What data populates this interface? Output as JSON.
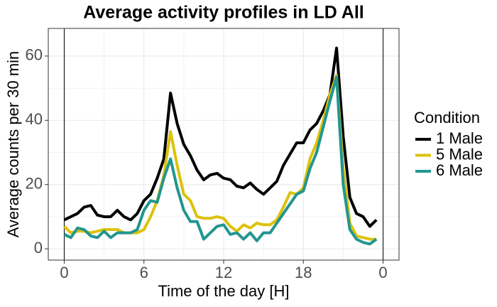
{
  "chart_data": {
    "type": "line",
    "title": "Average activity profiles in LD All",
    "x_label": "Time of the day [H]",
    "y_label": "Average counts per 30 min",
    "legend_title": "Condition",
    "x": [
      0,
      0.5,
      1,
      1.5,
      2,
      2.5,
      3,
      3.5,
      4,
      4.5,
      5,
      5.5,
      6,
      6.5,
      7,
      7.5,
      8,
      8.5,
      9,
      9.5,
      10,
      10.5,
      11,
      11.5,
      12,
      12.5,
      13,
      13.5,
      14,
      14.5,
      15,
      15.5,
      16,
      16.5,
      17,
      17.5,
      18,
      18.5,
      19,
      19.5,
      20,
      20.5,
      21,
      21.5,
      22,
      22.5,
      23,
      23.5
    ],
    "series": [
      {
        "name": "1 Male",
        "color": "#000000",
        "values": [
          9,
          10,
          11,
          13,
          13.5,
          10.5,
          10,
          10,
          12,
          10,
          9,
          11,
          15,
          17,
          22,
          28,
          48.5,
          39,
          32.5,
          29,
          24.5,
          21.5,
          23,
          23.5,
          22,
          21.5,
          19.5,
          19,
          20.5,
          18.5,
          17,
          19,
          21,
          26,
          29.5,
          33,
          33,
          37,
          39,
          43,
          48,
          62.5,
          35,
          16,
          11,
          10,
          7,
          9
        ]
      },
      {
        "name": "5 Male",
        "color": "#dcc20c",
        "values": [
          7,
          5,
          5.5,
          5.5,
          5,
          5.5,
          6,
          6,
          6,
          5,
          5,
          5,
          6,
          10,
          15,
          23,
          36.5,
          26,
          17,
          15,
          10,
          9.5,
          9.5,
          10,
          9.5,
          7,
          5.5,
          7.5,
          6.5,
          8,
          7.5,
          7.5,
          9,
          13,
          17.5,
          17,
          19,
          28,
          33,
          40,
          48,
          54,
          25,
          8,
          4,
          3.5,
          3,
          3
        ]
      },
      {
        "name": "6 Male",
        "color": "#22968f",
        "values": [
          4.5,
          3.5,
          6.5,
          6,
          4,
          3.5,
          5.5,
          3.5,
          5,
          5,
          5,
          6,
          12,
          15,
          14.5,
          22,
          28,
          19,
          12,
          8.5,
          8.5,
          3,
          5,
          7,
          7.5,
          4.5,
          5,
          3,
          5,
          2.5,
          5,
          5,
          8,
          11,
          14,
          17,
          18,
          25,
          30,
          38,
          46,
          53.5,
          20,
          6,
          3,
          2,
          1.5,
          3
        ]
      }
    ],
    "xlim": [
      -1.2,
      25.2
    ],
    "ylim": [
      -3.5,
      68.6
    ],
    "xticks": [
      0,
      6,
      12,
      18,
      {
        "value": 24,
        "label": "0"
      }
    ],
    "yticks": [
      0,
      20,
      40,
      60
    ],
    "vlines": [
      0,
      24
    ],
    "grid": true
  }
}
